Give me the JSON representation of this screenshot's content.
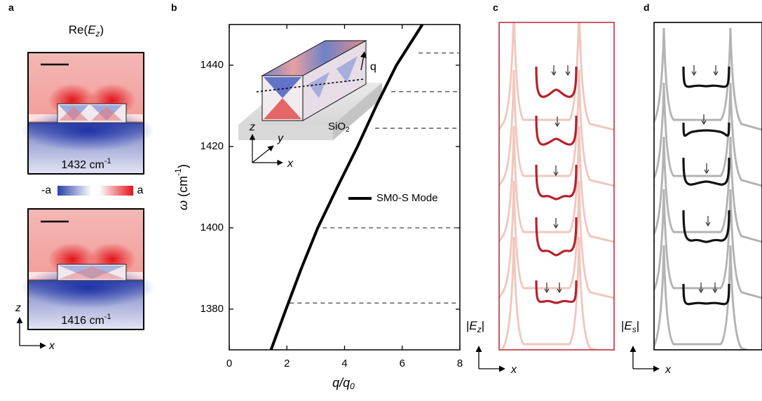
{
  "panel_a": {
    "label": "a",
    "title": {
      "main": "Re(",
      "var": "E",
      "sub": "z",
      "close": ")"
    },
    "colorbar": {
      "min": "-a",
      "max": "a"
    },
    "maps": [
      {
        "label": "1432 cm",
        "sup": "-1"
      },
      {
        "label": "1416 cm",
        "sup": "-1"
      }
    ],
    "axes": {
      "vertical": "z",
      "horizontal": "x"
    }
  },
  "chart_data": {
    "type": "line",
    "label": "b",
    "xlabel": {
      "main": "q/q",
      "sub": "0"
    },
    "ylabel": {
      "symbol": "ω",
      "main": "(cm",
      "sup": "-1",
      "close": ")"
    },
    "x": [
      1.45,
      1.97,
      2.5,
      3.07,
      3.75,
      4.45,
      5.1,
      5.8,
      6.7
    ],
    "series": [
      {
        "name": "SM0-S Mode",
        "color": "#000000",
        "values": [
          1370,
          1380,
          1390,
          1400,
          1410,
          1420,
          1430,
          1440,
          1450
        ]
      }
    ],
    "xlim": [
      0,
      8
    ],
    "ylim": [
      1370,
      1450
    ],
    "xticks": [
      0,
      2,
      4,
      6,
      8
    ],
    "yticks": [
      1380,
      1400,
      1420,
      1440
    ],
    "reference_lines": {
      "y": [
        1443,
        1433.5,
        1424.5,
        1400,
        1381.5
      ],
      "x_start": [
        6.57,
        5.62,
        5.06,
        3.24,
        2.1
      ],
      "color": "#666666"
    },
    "inset": {
      "substrate": {
        "main": "SiO",
        "sub": "2"
      },
      "wavevector": "q",
      "axes": [
        "z",
        "y",
        "x"
      ]
    }
  },
  "panel_c": {
    "label": "c",
    "ylabel": {
      "open": "|",
      "var": "E",
      "sub": "z",
      "close": "|"
    },
    "xlabel": "x",
    "color": "#c0303a"
  },
  "panel_d": {
    "label": "d",
    "ylabel": {
      "open": "|",
      "var": "E",
      "sub": "s",
      "close": "|"
    },
    "xlabel": "x",
    "color": "#000000"
  }
}
